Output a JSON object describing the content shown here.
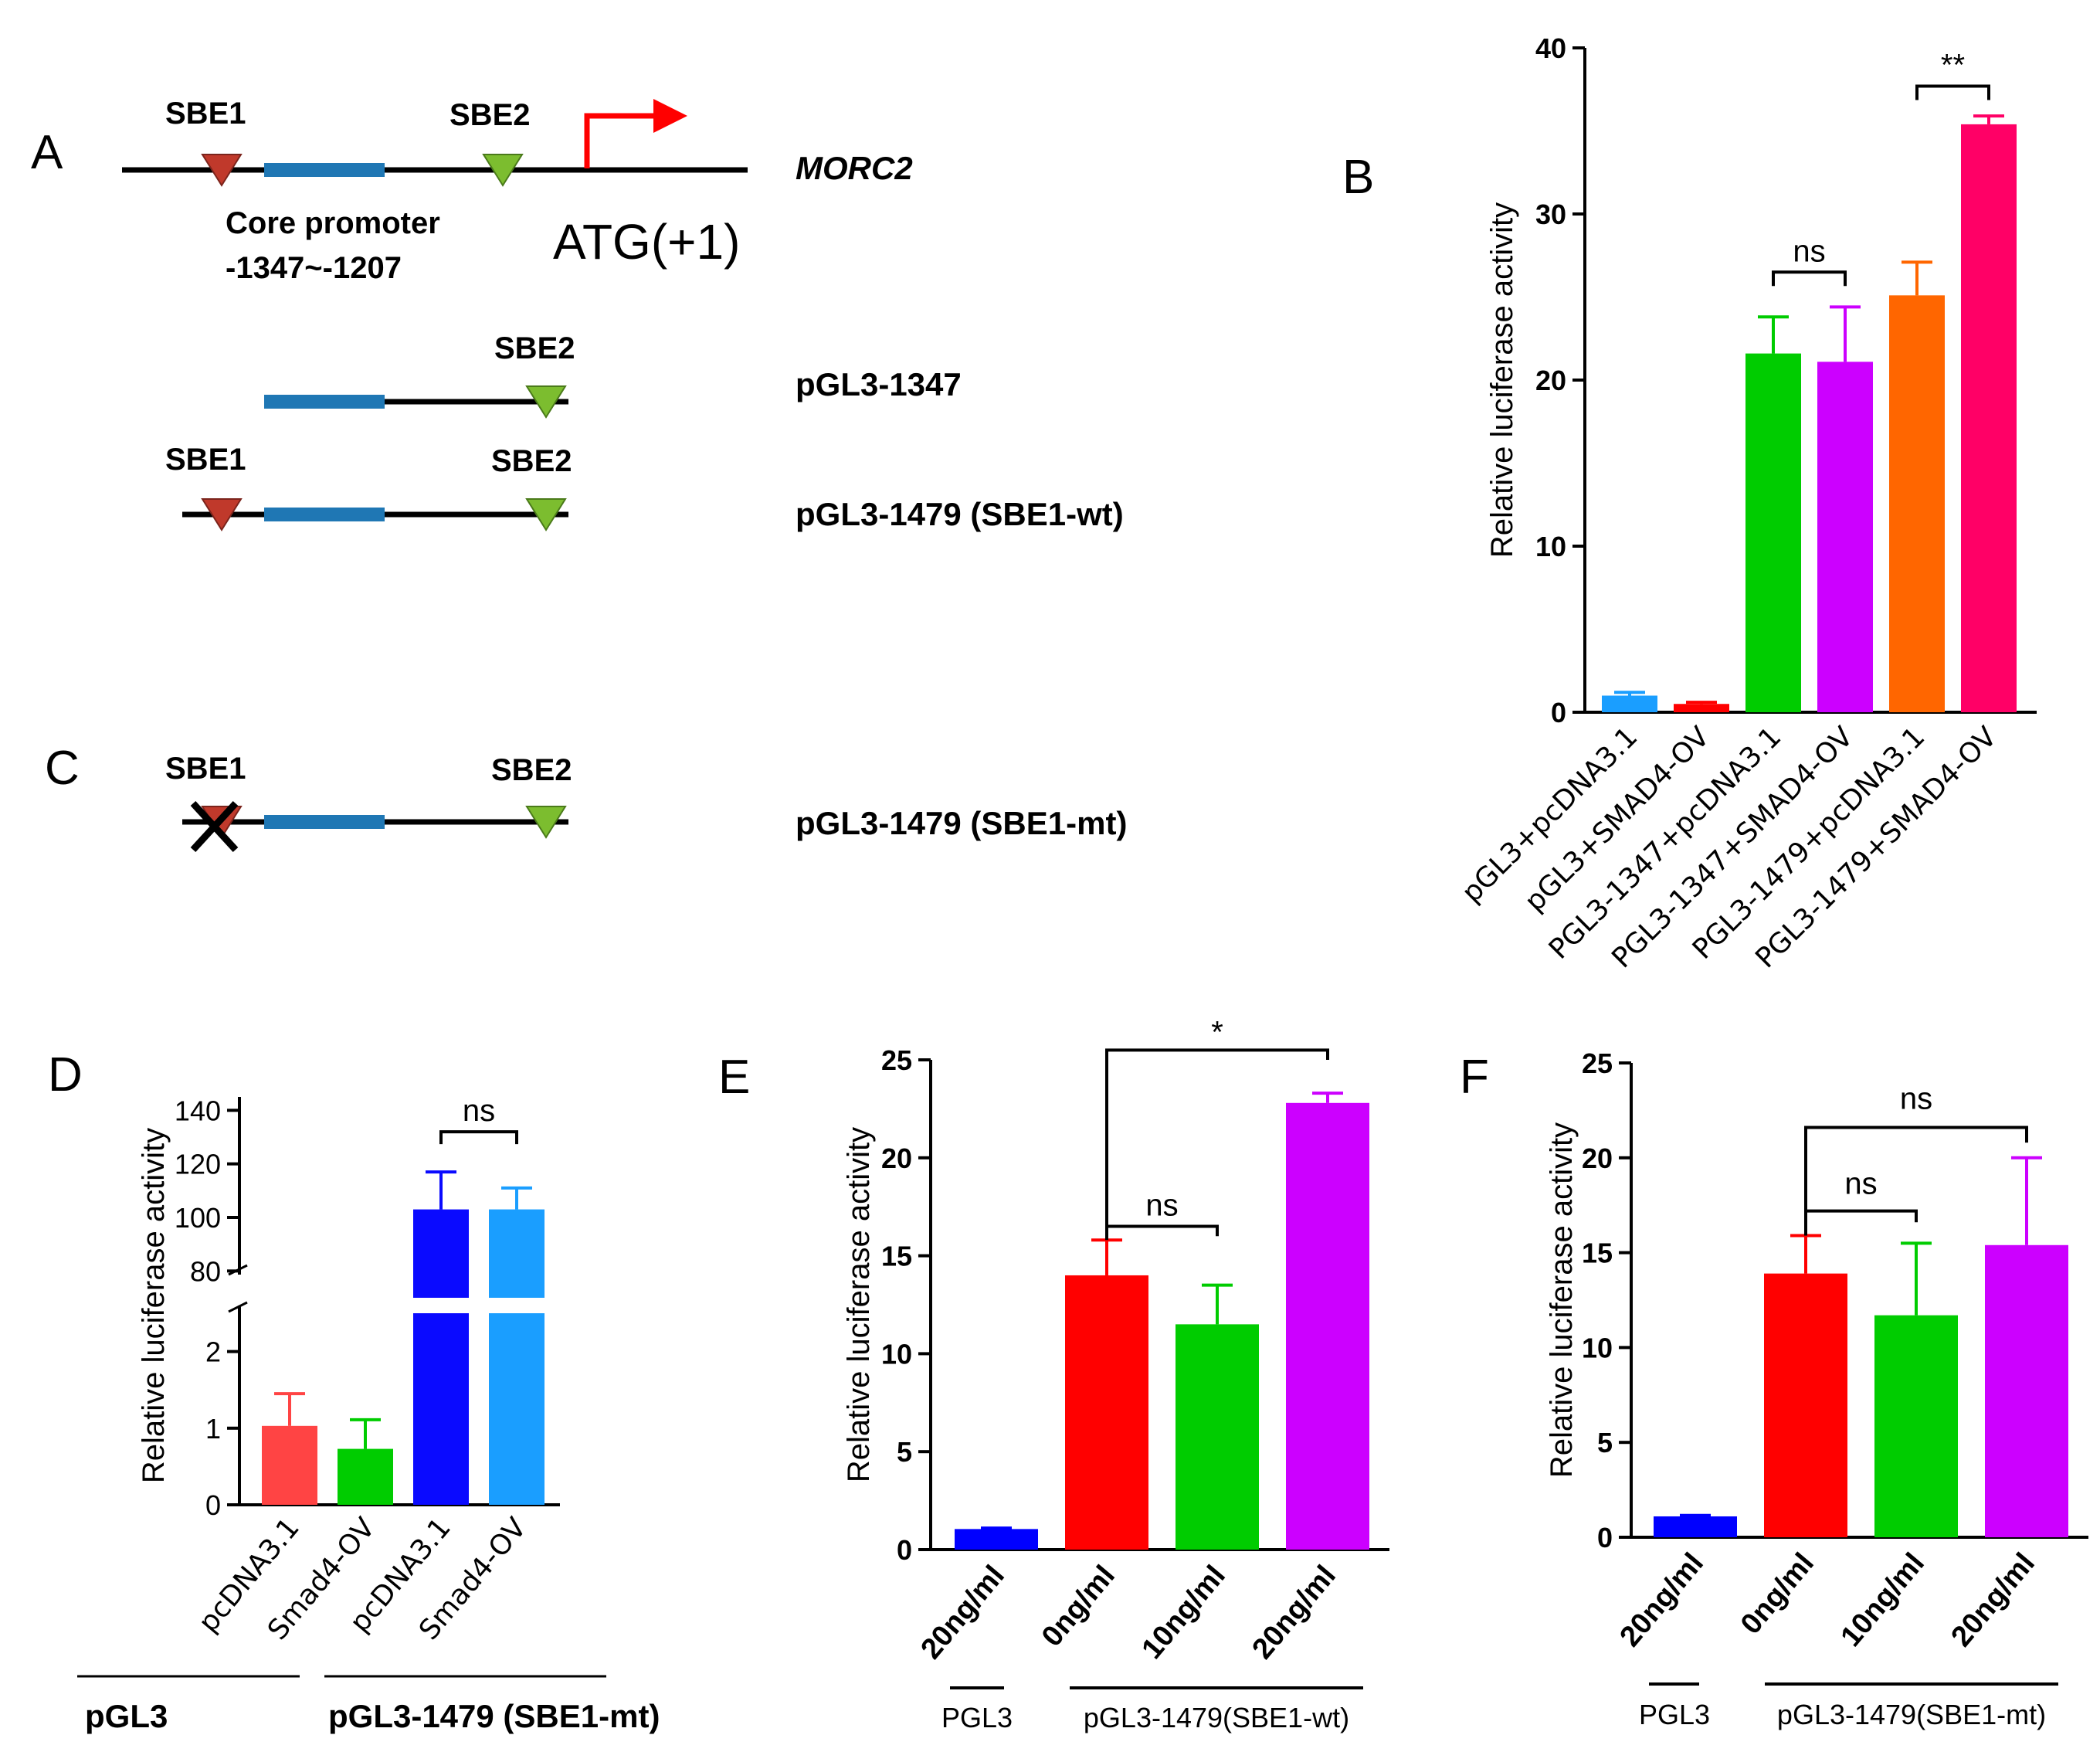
{
  "colors": {
    "blue": "#0000ff",
    "red": "#ff0000",
    "green": "#00cc00",
    "purple": "#cc00ff",
    "orange": "#ff6600",
    "pink": "#ff0066",
    "lightblue": "#1a9eff",
    "dblue": "#0a0aff",
    "salmon": "#ff4444",
    "diagram_line": "#000000",
    "core_promoter": "#1f77b4",
    "sbe1": "#c0392b",
    "sbe2": "#7cbd2f",
    "tss_arrow": "#ff0000"
  },
  "panel_labels": {
    "a": "A",
    "b": "B",
    "c": "C",
    "d": "D",
    "e": "E",
    "f": "F"
  },
  "diagram": {
    "sbe1": "SBE1",
    "sbe2": "SBE2",
    "gene": "MORC2",
    "core_promoter": "Core promoter",
    "core_range": "-1347~-1207",
    "atg": "ATG(+1)",
    "construct_1347": "pGL3-1347",
    "construct_wt": "pGL3-1479 (SBE1-wt)",
    "construct_mt": "pGL3-1479 (SBE1-mt)"
  },
  "chart_data": [
    {
      "id": "B",
      "type": "bar",
      "ylabel": "Relative luciferase activity",
      "ylim": [
        0,
        40
      ],
      "yticks": [
        0,
        10,
        20,
        30,
        40
      ],
      "categories": [
        "pGL3+pcDNA3.1",
        "pGL3+SMAD4-OV",
        "PGL3-1347+pcDNA3.1",
        "PGL3-1347+SMAD4-OV",
        "PGL3-1479+pcDNA3.1",
        "PGL3-1479+SMAD4-OV"
      ],
      "values": [
        1.0,
        0.5,
        21.6,
        21.1,
        25.1,
        35.4
      ],
      "errors": [
        0.2,
        0.1,
        2.2,
        3.3,
        2.0,
        0.5
      ],
      "colors": [
        "#1a9eff",
        "#ff0000",
        "#00cc00",
        "#cc00ff",
        "#ff6600",
        "#ff0066"
      ],
      "significance": [
        {
          "from": 2,
          "to": 3,
          "label": "ns"
        },
        {
          "from": 4,
          "to": 5,
          "label": "**"
        }
      ]
    },
    {
      "id": "D",
      "type": "bar",
      "ylabel": "Relative luciferase activity",
      "axis_break": {
        "lower_ylim": [
          0,
          2.5
        ],
        "upper_ylim": [
          70,
          145
        ]
      },
      "yticks_lower": [
        0,
        1,
        2
      ],
      "yticks_upper": [
        80,
        100,
        120,
        140
      ],
      "categories": [
        "pcDNA3.1",
        "Smad4-OV",
        "pcDNA3.1",
        "Smad4-OV"
      ],
      "values": [
        1.03,
        0.73,
        103,
        103
      ],
      "errors": [
        0.42,
        0.38,
        14,
        8
      ],
      "colors": [
        "#ff4444",
        "#00cc00",
        "#0a0aff",
        "#1a9eff"
      ],
      "groups": [
        {
          "label": "pGL3",
          "from": 0,
          "to": 1
        },
        {
          "label": "pGL3-1479 (SBE1-mt)",
          "from": 2,
          "to": 3
        }
      ],
      "significance": [
        {
          "from": 2,
          "to": 3,
          "label": "ns"
        }
      ]
    },
    {
      "id": "E",
      "type": "bar",
      "ylabel": "Relative luciferase activity",
      "ylim": [
        0,
        25
      ],
      "yticks": [
        0,
        5,
        10,
        15,
        20,
        25
      ],
      "categories": [
        "20ng/ml",
        "0ng/ml",
        "10ng/ml",
        "20ng/ml"
      ],
      "values": [
        1.05,
        14.0,
        11.5,
        22.8
      ],
      "errors": [
        0.05,
        1.8,
        2.0,
        0.5
      ],
      "colors": [
        "#0000ff",
        "#ff0000",
        "#00cc00",
        "#cc00ff"
      ],
      "groups": [
        {
          "label": "PGL3",
          "from": 0,
          "to": 0
        },
        {
          "label": "pGL3-1479(SBE1-wt)",
          "from": 1,
          "to": 3
        }
      ],
      "significance": [
        {
          "from": 1,
          "to": 2,
          "label": "ns"
        },
        {
          "from": 1,
          "to": 3,
          "label": "*"
        }
      ]
    },
    {
      "id": "F",
      "type": "bar",
      "ylabel": "Relative luciferase activity",
      "ylim": [
        0,
        25
      ],
      "yticks": [
        0,
        5,
        10,
        15,
        20,
        25
      ],
      "categories": [
        "20ng/ml",
        "0ng/ml",
        "10ng/ml",
        "20ng/ml"
      ],
      "values": [
        1.1,
        13.9,
        11.7,
        15.4
      ],
      "errors": [
        0.05,
        2.0,
        3.8,
        4.6
      ],
      "colors": [
        "#0000ff",
        "#ff0000",
        "#00cc00",
        "#cc00ff"
      ],
      "groups": [
        {
          "label": "PGL3",
          "from": 0,
          "to": 0
        },
        {
          "label": "pGL3-1479(SBE1-mt)",
          "from": 1,
          "to": 3
        }
      ],
      "significance": [
        {
          "from": 1,
          "to": 2,
          "label": "ns"
        },
        {
          "from": 1,
          "to": 3,
          "label": "ns"
        }
      ]
    }
  ]
}
